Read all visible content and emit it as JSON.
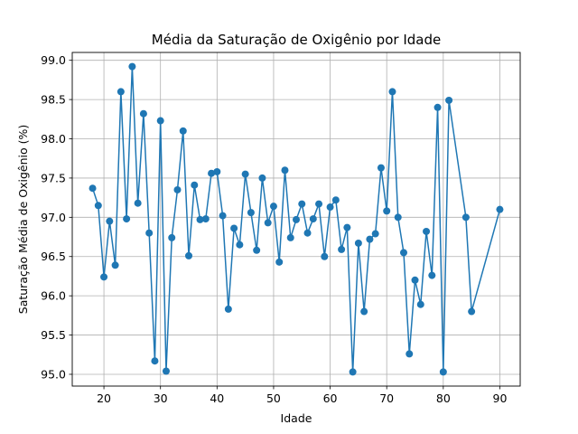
{
  "chart_data": {
    "type": "line",
    "title": "Média da Saturação de Oxigênio por Idade",
    "xlabel": "Idade",
    "ylabel": "Saturação Média de Oxigênio (%)",
    "xlim": [
      14.4,
      93.6
    ],
    "ylim": [
      94.85,
      99.1
    ],
    "xticks": [
      20,
      30,
      40,
      50,
      60,
      70,
      80,
      90
    ],
    "yticks": [
      95.0,
      95.5,
      96.0,
      96.5,
      97.0,
      97.5,
      98.0,
      98.5,
      99.0
    ],
    "grid": true,
    "line_color": "#1f77b4",
    "marker": "circle",
    "series": [
      {
        "x": [
          18,
          19,
          20,
          21,
          22,
          23,
          24,
          25,
          26,
          27,
          28,
          29,
          30,
          31,
          32,
          33,
          34,
          35,
          36,
          37,
          38,
          39,
          40,
          41,
          42,
          43,
          44,
          45,
          46,
          47,
          48,
          49,
          50,
          51,
          52,
          53,
          54,
          55,
          56,
          57,
          58,
          59,
          60,
          61,
          62,
          63,
          64,
          65,
          66,
          67,
          68,
          69,
          70,
          71,
          72,
          73,
          74,
          75,
          76,
          77,
          78,
          79,
          80,
          81,
          84,
          85,
          90
        ],
        "y": [
          97.37,
          97.15,
          96.24,
          96.95,
          96.39,
          98.6,
          96.98,
          98.92,
          97.18,
          98.32,
          96.8,
          95.17,
          98.23,
          95.04,
          96.74,
          97.35,
          98.1,
          96.51,
          97.41,
          96.97,
          96.98,
          97.56,
          97.58,
          97.02,
          95.83,
          96.86,
          96.65,
          97.55,
          97.06,
          96.58,
          97.5,
          96.93,
          97.14,
          96.43,
          97.6,
          96.74,
          96.97,
          97.17,
          96.8,
          96.98,
          97.17,
          96.5,
          97.13,
          97.22,
          96.59,
          96.87,
          95.03,
          96.67,
          95.8,
          96.72,
          96.79,
          97.63,
          97.08,
          98.6,
          97.0,
          96.55,
          95.26,
          96.2,
          95.89,
          96.82,
          96.26,
          98.4,
          95.03,
          98.49,
          97.0,
          95.8,
          97.1
        ]
      }
    ]
  }
}
